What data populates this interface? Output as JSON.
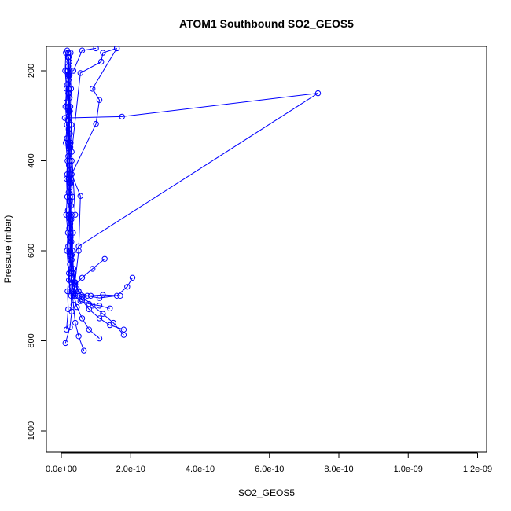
{
  "chart_data": {
    "type": "line",
    "title": "ATOM1 Southbound SO2_GEOS5",
    "xlabel": "SO2_GEOS5",
    "ylabel": "Pressure (mbar)",
    "xlim": [
      0,
      1.2e-09
    ],
    "ylim": [
      1000,
      150
    ],
    "y_reversed": true,
    "x_ticks": [
      0,
      2e-10,
      4e-10,
      6e-10,
      8e-10,
      1e-09,
      1.2e-09
    ],
    "x_tick_labels": [
      "0.0e+00",
      "2.0e-10",
      "4.0e-10",
      "6.0e-10",
      "8.0e-10",
      "1.0e-09",
      "1.2e-09"
    ],
    "y_ticks": [
      200,
      400,
      600,
      800,
      1000
    ],
    "y_tick_labels": [
      "200",
      "400",
      "600",
      "800",
      "1000"
    ],
    "grid": false,
    "legend": "none",
    "series_color": "#0000ff",
    "marker": "open-circle",
    "series": [
      {
        "points": [
          [
            1.5e-11,
            775
          ],
          [
            2e-11,
            730
          ],
          [
            1.8e-11,
            690
          ],
          [
            2.2e-11,
            650
          ],
          [
            1.6e-11,
            600
          ],
          [
            1.9e-11,
            560
          ],
          [
            1.4e-11,
            520
          ],
          [
            1.7e-11,
            480
          ],
          [
            1.5e-11,
            440
          ],
          [
            1.8e-11,
            400
          ],
          [
            1.3e-11,
            360
          ],
          [
            1.6e-11,
            320
          ],
          [
            1.2e-11,
            280
          ],
          [
            1.5e-11,
            240
          ],
          [
            1.1e-11,
            200
          ],
          [
            1.3e-11,
            160
          ]
        ]
      },
      {
        "points": [
          [
            1.2e-11,
            805
          ],
          [
            2.5e-11,
            770
          ],
          [
            3e-11,
            735
          ],
          [
            2.8e-11,
            700
          ],
          [
            2.2e-11,
            665
          ],
          [
            2.5e-11,
            630
          ],
          [
            2e-11,
            590
          ],
          [
            2.3e-11,
            550
          ],
          [
            1.9e-11,
            510
          ],
          [
            2.1e-11,
            470
          ],
          [
            1.7e-11,
            430
          ],
          [
            2e-11,
            390
          ],
          [
            1.6e-11,
            350
          ],
          [
            1.9e-11,
            310
          ],
          [
            1.5e-11,
            270
          ],
          [
            1.8e-11,
            230
          ],
          [
            2e-11,
            190
          ],
          [
            1.7e-11,
            155
          ]
        ]
      },
      {
        "points": [
          [
            6.5e-11,
            822
          ],
          [
            5e-11,
            790
          ],
          [
            4e-11,
            760
          ],
          [
            3.5e-11,
            720
          ],
          [
            3e-11,
            680
          ],
          [
            2.8e-11,
            640
          ],
          [
            2.5e-11,
            600
          ],
          [
            2.6e-11,
            560
          ],
          [
            2.3e-11,
            520
          ],
          [
            2.5e-11,
            480
          ],
          [
            2.1e-11,
            440
          ],
          [
            2.4e-11,
            400
          ],
          [
            2e-11,
            360
          ],
          [
            2.2e-11,
            320
          ],
          [
            1.9e-11,
            280
          ],
          [
            2.1e-11,
            240
          ],
          [
            1.8e-11,
            200
          ],
          [
            2e-11,
            160
          ]
        ]
      },
      {
        "points": [
          [
            1.1e-10,
            795
          ],
          [
            8e-11,
            775
          ],
          [
            6e-11,
            750
          ],
          [
            4.5e-11,
            725
          ],
          [
            3.5e-11,
            695
          ],
          [
            3e-11,
            660
          ],
          [
            2.7e-11,
            620
          ],
          [
            2.9e-11,
            580
          ],
          [
            2.6e-11,
            540
          ],
          [
            2.8e-11,
            500
          ],
          [
            2.4e-11,
            460
          ],
          [
            2.6e-11,
            420
          ],
          [
            2.3e-11,
            380
          ],
          [
            2.5e-11,
            340
          ],
          [
            2.2e-11,
            300
          ],
          [
            2.4e-11,
            260
          ],
          [
            2.1e-11,
            220
          ],
          [
            2.3e-11,
            180
          ]
        ]
      },
      {
        "points": [
          [
            1.8e-10,
            775
          ],
          [
            1.4e-10,
            765
          ],
          [
            1.1e-10,
            750
          ],
          [
            8e-11,
            730
          ],
          [
            6e-11,
            710
          ],
          [
            4.5e-11,
            685
          ],
          [
            3.5e-11,
            650
          ],
          [
            3e-11,
            610
          ],
          [
            2.7e-11,
            570
          ],
          [
            2.9e-11,
            530
          ],
          [
            2.5e-11,
            490
          ],
          [
            2.7e-11,
            450
          ],
          [
            2.4e-11,
            410
          ],
          [
            2.6e-11,
            370
          ],
          [
            2.3e-11,
            330
          ],
          [
            2.5e-11,
            290
          ],
          [
            2.2e-11,
            250
          ],
          [
            2.4e-11,
            210
          ],
          [
            2.1e-11,
            170
          ]
        ]
      },
      {
        "points": [
          [
            1.8e-10,
            787
          ],
          [
            1.5e-10,
            760
          ],
          [
            1.2e-10,
            740
          ],
          [
            9e-11,
            722
          ],
          [
            6.5e-11,
            705
          ],
          [
            5e-11,
            690
          ],
          [
            4e-11,
            670
          ],
          [
            3.5e-11,
            640
          ],
          [
            3.2e-11,
            600
          ],
          [
            3.4e-11,
            560
          ],
          [
            3e-11,
            520
          ],
          [
            3.2e-11,
            480
          ],
          [
            2.8e-11,
            440
          ],
          [
            3e-11,
            400
          ],
          [
            2.7e-11,
            360
          ],
          [
            2.9e-11,
            320
          ],
          [
            2.6e-11,
            280
          ],
          [
            2.8e-11,
            240
          ],
          [
            2.5e-11,
            200
          ],
          [
            2.7e-11,
            160
          ]
        ]
      },
      {
        "points": [
          [
            1.4e-10,
            728
          ],
          [
            1.1e-10,
            722
          ],
          [
            8e-11,
            718
          ],
          [
            5.5e-11,
            712
          ],
          [
            4e-11,
            700
          ],
          [
            3.2e-11,
            680
          ],
          [
            2.8e-11,
            650
          ],
          [
            2.6e-11,
            610
          ],
          [
            2.4e-11,
            570
          ],
          [
            2.6e-11,
            530
          ],
          [
            2.3e-11,
            490
          ],
          [
            2.5e-11,
            450
          ],
          [
            2.2e-11,
            410
          ],
          [
            2.4e-11,
            370
          ],
          [
            2.1e-11,
            330
          ],
          [
            2.3e-11,
            290
          ],
          [
            2e-11,
            250
          ],
          [
            2.2e-11,
            210
          ],
          [
            1.9e-11,
            170
          ]
        ]
      },
      {
        "points": [
          [
            1.7e-10,
            700
          ],
          [
            1.2e-10,
            698
          ],
          [
            8.5e-11,
            700
          ],
          [
            6e-11,
            702
          ],
          [
            4.5e-11,
            700
          ],
          [
            3.5e-11,
            690
          ],
          [
            3e-11,
            670
          ],
          [
            2.8e-11,
            640
          ],
          [
            2.6e-11,
            600
          ],
          [
            2.5e-11,
            560
          ],
          [
            2.3e-11,
            520
          ],
          [
            2.4e-11,
            480
          ],
          [
            2.2e-11,
            440
          ],
          [
            2.3e-11,
            400
          ],
          [
            2.1e-11,
            360
          ],
          [
            2.2e-11,
            320
          ],
          [
            2e-11,
            280
          ],
          [
            2.1e-11,
            240
          ],
          [
            1.9e-11,
            200
          ],
          [
            2e-11,
            160
          ]
        ]
      },
      {
        "points": [
          [
            2.05e-10,
            660
          ],
          [
            1.9e-10,
            680
          ],
          [
            1.6e-10,
            700
          ],
          [
            1.1e-10,
            705
          ],
          [
            7.5e-11,
            700
          ],
          [
            5e-11,
            690
          ],
          [
            3.8e-11,
            670
          ],
          [
            3e-11,
            645
          ],
          [
            2.7e-11,
            610
          ],
          [
            2.5e-11,
            570
          ],
          [
            2.4e-11,
            530
          ],
          [
            2.5e-11,
            490
          ],
          [
            2.3e-11,
            450
          ],
          [
            2.4e-11,
            410
          ],
          [
            2.2e-11,
            370
          ],
          [
            2.3e-11,
            330
          ],
          [
            2.1e-11,
            290
          ],
          [
            2.2e-11,
            250
          ],
          [
            2e-11,
            210
          ],
          [
            2.1e-11,
            170
          ]
        ]
      },
      {
        "points": [
          [
            1.25e-10,
            618
          ],
          [
            9e-11,
            640
          ],
          [
            6e-11,
            660
          ],
          [
            4e-11,
            675
          ],
          [
            3e-11,
            665
          ],
          [
            2.7e-11,
            640
          ],
          [
            2.5e-11,
            600
          ],
          [
            2.6e-11,
            560
          ],
          [
            2.3e-11,
            520
          ],
          [
            2.4e-11,
            480
          ],
          [
            2.2e-11,
            440
          ],
          [
            2.3e-11,
            400
          ],
          [
            2.1e-11,
            360
          ],
          [
            2.2e-11,
            320
          ],
          [
            2e-11,
            280
          ],
          [
            2.1e-11,
            240
          ],
          [
            1.9e-11,
            200
          ],
          [
            2e-11,
            160
          ]
        ]
      },
      {
        "points": [
          [
            3e-11,
            690
          ],
          [
            2.8e-11,
            650
          ],
          [
            3e-11,
            620
          ],
          [
            5e-11,
            590
          ],
          [
            7.4e-10,
            250
          ],
          [
            1.75e-10,
            302
          ],
          [
            1e-11,
            305
          ]
        ]
      },
      {
        "points": [
          [
            3.5e-11,
            700
          ],
          [
            5e-11,
            600
          ],
          [
            5.5e-11,
            478
          ],
          [
            3e-11,
            430
          ],
          [
            1e-10,
            318
          ],
          [
            1.1e-10,
            265
          ],
          [
            9e-11,
            240
          ],
          [
            1.6e-10,
            150
          ]
        ]
      },
      {
        "points": [
          [
            4e-11,
            520
          ],
          [
            3e-11,
            380
          ],
          [
            5.5e-11,
            205
          ],
          [
            1.15e-10,
            180
          ],
          [
            1.2e-10,
            160
          ],
          [
            1.6e-10,
            150
          ]
        ]
      },
      {
        "points": [
          [
            3.5e-11,
            200
          ],
          [
            6e-11,
            155
          ],
          [
            1e-10,
            150
          ]
        ]
      }
    ]
  }
}
